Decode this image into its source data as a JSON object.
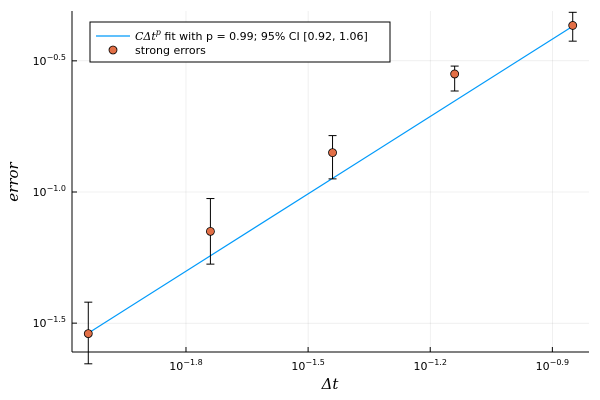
{
  "chart_data": {
    "type": "scatter",
    "x_scale": "log10",
    "y_scale": "log10",
    "xlabel": "Δt",
    "ylabel": "error",
    "xlim_log10": [
      -2.08,
      -0.81
    ],
    "ylim_log10": [
      -1.61,
      -0.31
    ],
    "x_ticks": [
      {
        "exp": -1.8,
        "base": "10",
        "sup": "−1.8"
      },
      {
        "exp": -1.5,
        "base": "10",
        "sup": "−1.5"
      },
      {
        "exp": -1.2,
        "base": "10",
        "sup": "−1.2"
      },
      {
        "exp": -0.9,
        "base": "10",
        "sup": "−0.9"
      }
    ],
    "y_ticks": [
      {
        "exp": -1.5,
        "base": "10",
        "sup": "−1.5"
      },
      {
        "exp": -1.0,
        "base": "10",
        "sup": "−1.0"
      },
      {
        "exp": -0.5,
        "base": "10",
        "sup": "−0.5"
      }
    ],
    "grid": true,
    "legend_position": "top-left",
    "series": [
      {
        "name": "CΔt^p fit with p = 0.99; 95% CI [0.92, 1.06]",
        "kind": "line",
        "color": "#009AFA",
        "x_log10": [
          -2.04,
          -0.85
        ],
        "y_log10": [
          -1.538,
          -0.368
        ]
      },
      {
        "name": "strong errors",
        "kind": "scatter",
        "color": "#E26F46",
        "x_log10": [
          -2.04,
          -1.74,
          -1.44,
          -1.14,
          -0.85
        ],
        "y_log10": [
          -1.54,
          -1.15,
          -0.85,
          -0.55,
          -0.365
        ],
        "err_lo_log10": [
          -1.655,
          -1.275,
          -0.95,
          -0.615,
          -0.425
        ],
        "err_hi_log10": [
          -1.42,
          -1.025,
          -0.785,
          -0.52,
          -0.315
        ]
      }
    ]
  },
  "legend": {
    "fit_math": "CΔt",
    "fit_sup": "p",
    "fit_text": " fit with p = 0.99; 95% CI [0.92, 1.06]",
    "points_text": "strong errors"
  }
}
